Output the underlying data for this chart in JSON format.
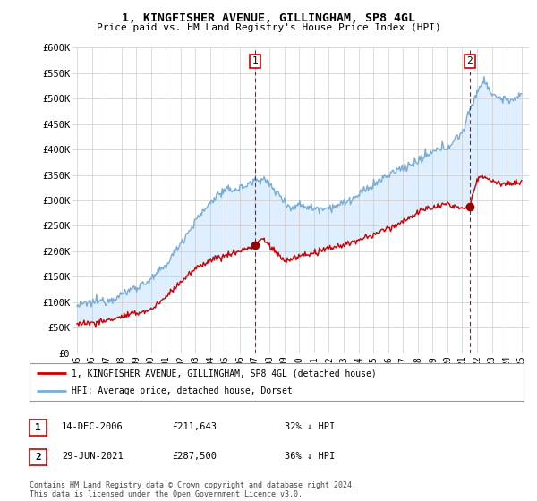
{
  "title": "1, KINGFISHER AVENUE, GILLINGHAM, SP8 4GL",
  "subtitle": "Price paid vs. HM Land Registry's House Price Index (HPI)",
  "ylim": [
    0,
    600000
  ],
  "yticks": [
    0,
    50000,
    100000,
    150000,
    200000,
    250000,
    300000,
    350000,
    400000,
    450000,
    500000,
    550000,
    600000
  ],
  "ytick_labels": [
    "£0",
    "£50K",
    "£100K",
    "£150K",
    "£200K",
    "£250K",
    "£300K",
    "£350K",
    "£400K",
    "£450K",
    "£500K",
    "£550K",
    "£600K"
  ],
  "hpi_color": "#7aadd4",
  "hpi_fill_color": "#ddeeff",
  "price_color": "#cc0000",
  "marker_color": "#990000",
  "annotation_box_color": "#cc0000",
  "sale1_x": 2007.0,
  "sale1_y": 211643,
  "sale1_label": "1",
  "sale2_x": 2021.5,
  "sale2_y": 287500,
  "sale2_label": "2",
  "legend_line1": "1, KINGFISHER AVENUE, GILLINGHAM, SP8 4GL (detached house)",
  "legend_line2": "HPI: Average price, detached house, Dorset",
  "table_row1": [
    "1",
    "14-DEC-2006",
    "£211,643",
    "32% ↓ HPI"
  ],
  "table_row2": [
    "2",
    "29-JUN-2021",
    "£287,500",
    "36% ↓ HPI"
  ],
  "footer": "Contains HM Land Registry data © Crown copyright and database right 2024.\nThis data is licensed under the Open Government Licence v3.0.",
  "background_color": "#ffffff",
  "grid_color": "#cccccc",
  "xlim_left": 1994.7,
  "xlim_right": 2025.5
}
